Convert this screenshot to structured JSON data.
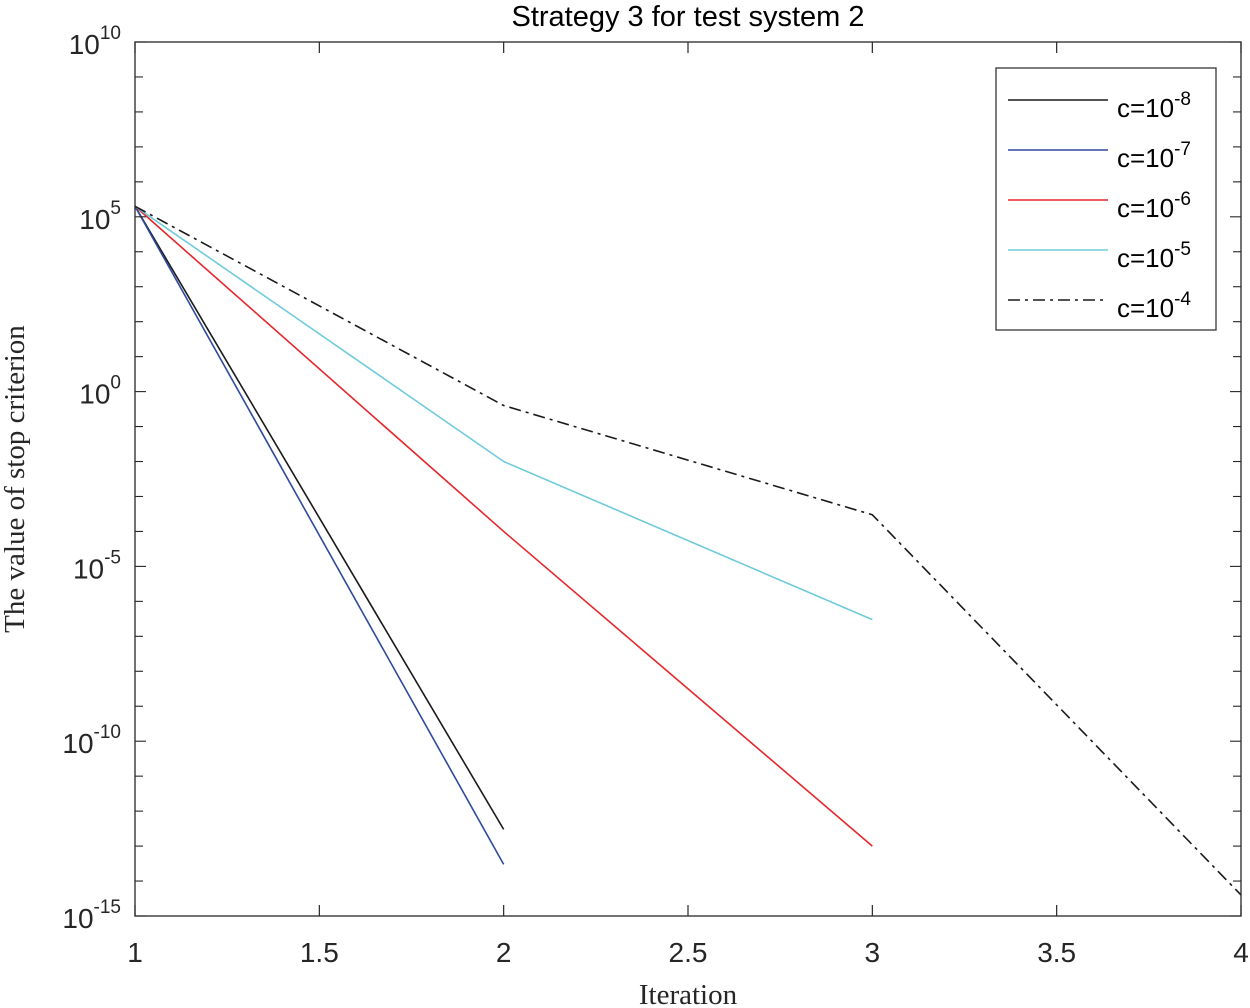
{
  "chart_data": {
    "type": "line",
    "title": "Strategy 3 for test system 2",
    "xlabel": "Iteration",
    "ylabel": "The value of stop criterion",
    "xscale": "linear",
    "yscale": "log",
    "xlim": [
      1,
      4
    ],
    "ylim": [
      1e-15,
      10000000000.0
    ],
    "grid": false,
    "legend_position": "top-right",
    "xticks": [
      {
        "value": 1,
        "label": "1"
      },
      {
        "value": 1.5,
        "label": "1.5"
      },
      {
        "value": 2,
        "label": "2"
      },
      {
        "value": 2.5,
        "label": "2.5"
      },
      {
        "value": 3,
        "label": "3"
      },
      {
        "value": 3.5,
        "label": "3.5"
      },
      {
        "value": 4,
        "label": "4"
      }
    ],
    "yticks": [
      {
        "value": -15,
        "base": "10",
        "exp": "-15"
      },
      {
        "value": -10,
        "base": "10",
        "exp": "-10"
      },
      {
        "value": -5,
        "base": "10",
        "exp": "-5"
      },
      {
        "value": 0,
        "base": "10",
        "exp": "0"
      },
      {
        "value": 5,
        "base": "10",
        "exp": "5"
      },
      {
        "value": 10,
        "base": "10",
        "exp": "10"
      }
    ],
    "series": [
      {
        "legend_prefix": "c=10",
        "legend_exp": "-8",
        "color": "#1a1a1a",
        "dash": "solid",
        "x": [
          1,
          2
        ],
        "y": [
          200000.0,
          3e-13
        ]
      },
      {
        "legend_prefix": "c=10",
        "legend_exp": "-7",
        "color": "#2e4a9e",
        "dash": "solid",
        "x": [
          1,
          2
        ],
        "y": [
          200000.0,
          3e-14
        ]
      },
      {
        "legend_prefix": "c=10",
        "legend_exp": "-6",
        "color": "#e8272a",
        "dash": "solid",
        "x": [
          1,
          2,
          3
        ],
        "y": [
          200000.0,
          0.0001,
          1e-13
        ]
      },
      {
        "legend_prefix": "c=10",
        "legend_exp": "-5",
        "color": "#6fcbdc",
        "dash": "solid",
        "x": [
          1,
          2,
          3
        ],
        "y": [
          200000.0,
          0.01,
          3e-07
        ]
      },
      {
        "legend_prefix": "c=10",
        "legend_exp": "-4",
        "color": "#1a1a1a",
        "dash": "dashdot",
        "x": [
          1,
          2,
          3,
          4
        ],
        "y": [
          200000.0,
          0.4,
          0.0003,
          4e-15
        ]
      }
    ]
  }
}
